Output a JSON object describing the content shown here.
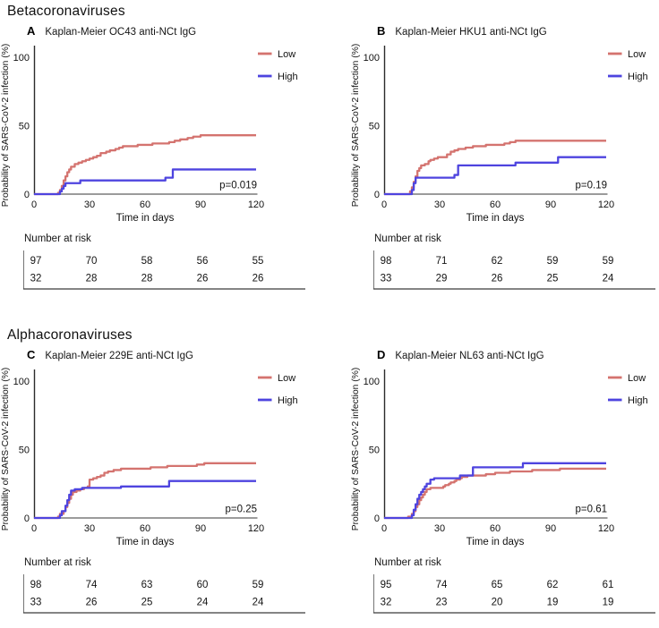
{
  "sections": [
    {
      "heading": "Betacoronaviruses"
    },
    {
      "heading": "Alphacoronaviruses"
    }
  ],
  "axes": {
    "ylabel": "Probability of SARS-CoV-2 infection (%)",
    "xlabel": "Time in days",
    "yticks": [
      0,
      50,
      100
    ],
    "xticks": [
      0,
      30,
      60,
      90,
      120
    ],
    "xlim": [
      0,
      120
    ],
    "ylim": [
      0,
      100
    ],
    "grid": false
  },
  "legend": {
    "position": "top-right",
    "entries": [
      "Low",
      "High"
    ]
  },
  "risk_label": "Number at risk",
  "colors": {
    "low": "#d4736f",
    "high": "#4e44df",
    "y_axis": "#2b2b2b",
    "x_axis": "#9b9b9b",
    "table_rule": "#3a3a3a",
    "text": "#111111"
  },
  "chart_data": [
    {
      "type": "line",
      "panel": "A",
      "section": "Betacoronaviruses",
      "title": "Kaplan-Meier OC43 anti-NCt IgG",
      "p_value": "p=0.019",
      "xlabel": "Time in days",
      "ylabel": "Probability of SARS-CoV-2 infection (%)",
      "xlim": [
        0,
        120
      ],
      "ylim": [
        0,
        100
      ],
      "series": [
        {
          "name": "Low",
          "color": "#d4736f",
          "steps": [
            [
              0,
              0
            ],
            [
              13,
              1
            ],
            [
              14,
              3
            ],
            [
              15,
              6
            ],
            [
              16,
              10
            ],
            [
              17,
              13
            ],
            [
              18,
              16
            ],
            [
              19,
              18
            ],
            [
              20,
              20
            ],
            [
              22,
              22
            ],
            [
              24,
              23
            ],
            [
              26,
              24
            ],
            [
              28,
              25
            ],
            [
              30,
              26
            ],
            [
              32,
              27
            ],
            [
              34,
              28
            ],
            [
              36,
              30
            ],
            [
              39,
              31
            ],
            [
              41,
              32
            ],
            [
              44,
              33
            ],
            [
              46,
              34
            ],
            [
              48,
              35
            ],
            [
              52,
              35
            ],
            [
              56,
              36
            ],
            [
              60,
              36
            ],
            [
              64,
              37
            ],
            [
              70,
              37
            ],
            [
              73,
              38
            ],
            [
              76,
              39
            ],
            [
              79,
              40
            ],
            [
              83,
              41
            ],
            [
              86,
              42
            ],
            [
              90,
              43
            ],
            [
              120,
              43
            ]
          ]
        },
        {
          "name": "High",
          "color": "#4e44df",
          "steps": [
            [
              0,
              0
            ],
            [
              14,
              2
            ],
            [
              15,
              4
            ],
            [
              16,
              6
            ],
            [
              17,
              8
            ],
            [
              25,
              10
            ],
            [
              71,
              12
            ],
            [
              75,
              18
            ],
            [
              120,
              18
            ]
          ]
        }
      ],
      "number_at_risk": {
        "times": [
          0,
          30,
          60,
          90,
          120
        ],
        "rows": [
          {
            "group": "Low",
            "counts": [
              97,
              70,
              58,
              56,
              55
            ]
          },
          {
            "group": "High",
            "counts": [
              32,
              28,
              28,
              26,
              26
            ]
          }
        ]
      }
    },
    {
      "type": "line",
      "panel": "B",
      "section": "Betacoronaviruses",
      "title": "Kaplan-Meier HKU1 anti-NCt IgG",
      "p_value": "p=0.19",
      "xlabel": "Time in days",
      "ylabel": "Probability of SARS-CoV-2 infection (%)",
      "xlim": [
        0,
        120
      ],
      "ylim": [
        0,
        100
      ],
      "series": [
        {
          "name": "Low",
          "color": "#d4736f",
          "steps": [
            [
              0,
              0
            ],
            [
              14,
              2
            ],
            [
              15,
              5
            ],
            [
              16,
              9
            ],
            [
              17,
              13
            ],
            [
              18,
              17
            ],
            [
              19,
              19
            ],
            [
              20,
              21
            ],
            [
              22,
              22
            ],
            [
              24,
              24
            ],
            [
              25,
              25
            ],
            [
              27,
              26
            ],
            [
              29,
              27
            ],
            [
              34,
              29
            ],
            [
              36,
              31
            ],
            [
              38,
              32
            ],
            [
              40,
              33
            ],
            [
              44,
              34
            ],
            [
              48,
              35
            ],
            [
              55,
              36
            ],
            [
              62,
              36
            ],
            [
              65,
              37
            ],
            [
              68,
              38
            ],
            [
              71,
              39
            ],
            [
              120,
              39
            ]
          ]
        },
        {
          "name": "High",
          "color": "#4e44df",
          "steps": [
            [
              0,
              0
            ],
            [
              15,
              3
            ],
            [
              16,
              8
            ],
            [
              17,
              12
            ],
            [
              38,
              14
            ],
            [
              40,
              21
            ],
            [
              71,
              23
            ],
            [
              94,
              27
            ],
            [
              120,
              27
            ]
          ]
        }
      ],
      "number_at_risk": {
        "times": [
          0,
          30,
          60,
          90,
          120
        ],
        "rows": [
          {
            "group": "Low",
            "counts": [
              98,
              71,
              62,
              59,
              59
            ]
          },
          {
            "group": "High",
            "counts": [
              33,
              29,
              26,
              25,
              24
            ]
          }
        ]
      }
    },
    {
      "type": "line",
      "panel": "C",
      "section": "Alphacoronaviruses",
      "title": "Kaplan-Meier 229E anti-NCt IgG",
      "p_value": "p=0.25",
      "xlabel": "Time in days",
      "ylabel": "Probability of SARS-CoV-2 infection (%)",
      "xlim": [
        0,
        120
      ],
      "ylim": [
        0,
        100
      ],
      "series": [
        {
          "name": "Low",
          "color": "#d4736f",
          "steps": [
            [
              0,
              0
            ],
            [
              13,
              1
            ],
            [
              14,
              3
            ],
            [
              16,
              5
            ],
            [
              17,
              8
            ],
            [
              18,
              11
            ],
            [
              19,
              14
            ],
            [
              20,
              17
            ],
            [
              21,
              19
            ],
            [
              23,
              20
            ],
            [
              25,
              21
            ],
            [
              27,
              22
            ],
            [
              29,
              23
            ],
            [
              30,
              28
            ],
            [
              32,
              29
            ],
            [
              34,
              30
            ],
            [
              36,
              31
            ],
            [
              38,
              33
            ],
            [
              40,
              34
            ],
            [
              43,
              35
            ],
            [
              47,
              36
            ],
            [
              60,
              36
            ],
            [
              63,
              37
            ],
            [
              72,
              38
            ],
            [
              88,
              39
            ],
            [
              92,
              40
            ],
            [
              120,
              40
            ]
          ]
        },
        {
          "name": "High",
          "color": "#4e44df",
          "steps": [
            [
              0,
              0
            ],
            [
              14,
              2
            ],
            [
              15,
              5
            ],
            [
              17,
              9
            ],
            [
              18,
              13
            ],
            [
              19,
              17
            ],
            [
              20,
              20
            ],
            [
              22,
              21
            ],
            [
              26,
              22
            ],
            [
              47,
              23
            ],
            [
              73,
              27
            ],
            [
              120,
              27
            ]
          ]
        }
      ],
      "number_at_risk": {
        "times": [
          0,
          30,
          60,
          90,
          120
        ],
        "rows": [
          {
            "group": "Low",
            "counts": [
              98,
              74,
              63,
              60,
              59
            ]
          },
          {
            "group": "High",
            "counts": [
              33,
              26,
              25,
              24,
              24
            ]
          }
        ]
      }
    },
    {
      "type": "line",
      "panel": "D",
      "section": "Alphacoronaviruses",
      "title": "Kaplan-Meier NL63 anti-NCt IgG",
      "p_value": "p=0.61",
      "xlabel": "Time in days",
      "ylabel": "Probability of SARS-CoV-2 infection (%)",
      "xlim": [
        0,
        120
      ],
      "ylim": [
        0,
        100
      ],
      "series": [
        {
          "name": "Low",
          "color": "#d4736f",
          "steps": [
            [
              0,
              0
            ],
            [
              13,
              1
            ],
            [
              15,
              3
            ],
            [
              16,
              5
            ],
            [
              17,
              8
            ],
            [
              18,
              10
            ],
            [
              19,
              13
            ],
            [
              20,
              15
            ],
            [
              21,
              17
            ],
            [
              22,
              19
            ],
            [
              23,
              21
            ],
            [
              25,
              22
            ],
            [
              32,
              23
            ],
            [
              33,
              24
            ],
            [
              35,
              25
            ],
            [
              36,
              26
            ],
            [
              38,
              27
            ],
            [
              39,
              28
            ],
            [
              41,
              29
            ],
            [
              42,
              30
            ],
            [
              45,
              31
            ],
            [
              55,
              32
            ],
            [
              60,
              33
            ],
            [
              68,
              34
            ],
            [
              80,
              35
            ],
            [
              95,
              36
            ],
            [
              120,
              36
            ]
          ]
        },
        {
          "name": "High",
          "color": "#4e44df",
          "steps": [
            [
              0,
              0
            ],
            [
              15,
              2
            ],
            [
              16,
              6
            ],
            [
              17,
              10
            ],
            [
              18,
              14
            ],
            [
              19,
              17
            ],
            [
              20,
              19
            ],
            [
              21,
              21
            ],
            [
              22,
              23
            ],
            [
              23,
              25
            ],
            [
              25,
              28
            ],
            [
              27,
              29
            ],
            [
              41,
              31
            ],
            [
              48,
              37
            ],
            [
              75,
              40
            ],
            [
              120,
              40
            ]
          ]
        }
      ],
      "number_at_risk": {
        "times": [
          0,
          30,
          60,
          90,
          120
        ],
        "rows": [
          {
            "group": "Low",
            "counts": [
              95,
              74,
              65,
              62,
              61
            ]
          },
          {
            "group": "High",
            "counts": [
              32,
              23,
              20,
              19,
              19
            ]
          }
        ]
      }
    }
  ]
}
